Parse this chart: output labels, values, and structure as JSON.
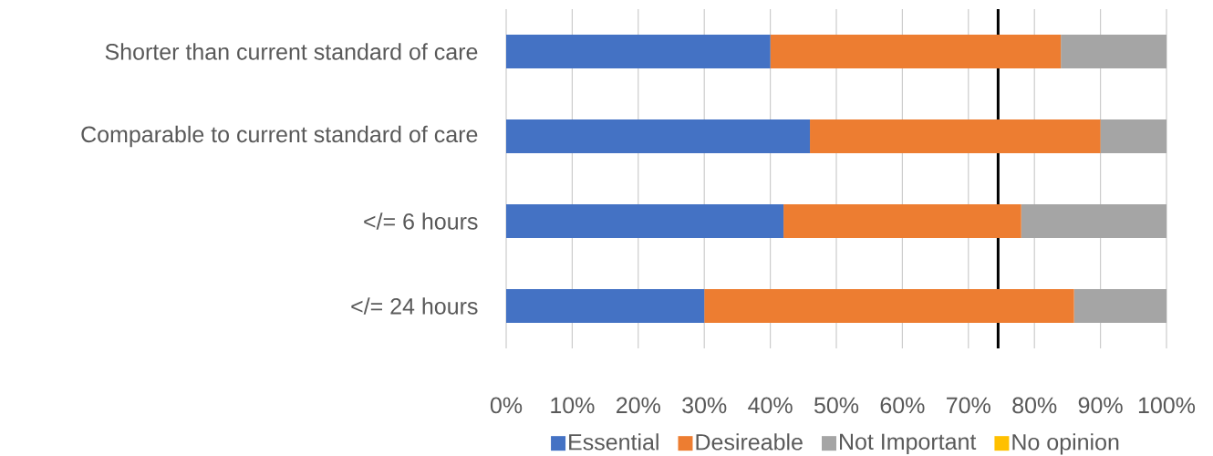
{
  "chart_data": {
    "type": "bar",
    "orientation": "horizontal",
    "stacked": true,
    "categories": [
      "Shorter than current standard of care",
      "Comparable to current standard of care",
      "</= 6 hours",
      "</= 24 hours"
    ],
    "series": [
      {
        "name": "Essential",
        "color": "#4472c4",
        "values": [
          40,
          46,
          42,
          30
        ]
      },
      {
        "name": "Desireable",
        "color": "#ed7d31",
        "values": [
          44,
          44,
          36,
          56
        ]
      },
      {
        "name": "Not Important",
        "color": "#a5a5a5",
        "values": [
          16,
          10,
          22,
          14
        ]
      },
      {
        "name": "No opinion",
        "color": "#ffc000",
        "values": [
          0,
          0,
          0,
          0
        ]
      }
    ],
    "xlim": [
      0,
      100
    ],
    "xticks": [
      {
        "value": 0,
        "label": "0%"
      },
      {
        "value": 10,
        "label": "10%"
      },
      {
        "value": 20,
        "label": "20%"
      },
      {
        "value": 30,
        "label": "30%"
      },
      {
        "value": 40,
        "label": "40%"
      },
      {
        "value": 50,
        "label": "50%"
      },
      {
        "value": 60,
        "label": "60%"
      },
      {
        "value": 70,
        "label": "70%"
      },
      {
        "value": 80,
        "label": "80%"
      },
      {
        "value": 90,
        "label": "90%"
      },
      {
        "value": 100,
        "label": "100%"
      }
    ],
    "ref_lines": [
      {
        "axis": "x",
        "value": 74.5,
        "color": "#000000"
      }
    ],
    "grid": "x",
    "legend": "bottom"
  }
}
